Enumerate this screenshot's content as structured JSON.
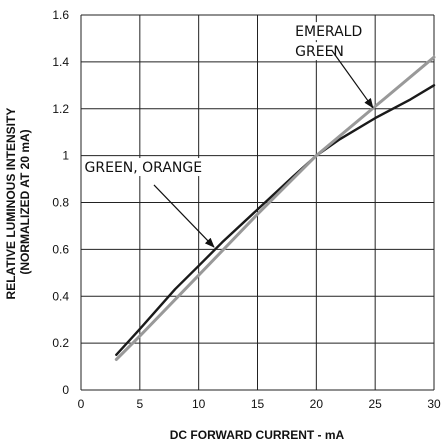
{
  "chart_data": {
    "type": "line",
    "title": "",
    "xlabel": "DC FORWARD CURRENT - mA",
    "ylabel_lines": [
      "RELATIVE LUMINOUS INTENSITY",
      "(NORMALIZED AT 20 mA)"
    ],
    "xlim": [
      0,
      30
    ],
    "ylim": [
      0,
      1.6
    ],
    "x_ticks": [
      0,
      5,
      10,
      15,
      20,
      25,
      30
    ],
    "x_tick_labels": [
      "0",
      "5",
      "10",
      "15",
      "20",
      "25",
      "30"
    ],
    "y_ticks": [
      0,
      0.2,
      0.4,
      0.6,
      0.8,
      1.0,
      1.2,
      1.4,
      1.6
    ],
    "y_tick_labels": [
      "0",
      "0.2",
      "0.4",
      "0.6",
      "0.8",
      "1",
      "1.2",
      "1.4",
      "1.6"
    ],
    "grid": true,
    "legend": "none",
    "series": [
      {
        "color": "#1a1a1a",
        "x": [
          3,
          5,
          8,
          10,
          12,
          15,
          18,
          20,
          22,
          25,
          28,
          30
        ],
        "y": [
          0.15,
          0.26,
          0.43,
          0.53,
          0.63,
          0.77,
          0.91,
          1.0,
          1.07,
          1.16,
          1.24,
          1.3
        ]
      },
      {
        "color": "#999999",
        "x": [
          3,
          5,
          10,
          15,
          20,
          25,
          30
        ],
        "y": [
          0.13,
          0.23,
          0.49,
          0.75,
          1.0,
          1.21,
          1.42
        ]
      }
    ],
    "annotations": [
      {
        "lines": [
          "EMERALD",
          "GREEN"
        ],
        "text_xy": [
          18.2,
          1.51
        ],
        "arrow_from": [
          21.3,
          1.45
        ],
        "arrow_to": [
          24.8,
          1.205
        ]
      },
      {
        "lines": [
          "GREEN, ORANGE"
        ],
        "text_xy": [
          0.3,
          0.93
        ],
        "arrow_from": [
          6.2,
          0.875
        ],
        "arrow_to": [
          11.3,
          0.61
        ]
      }
    ]
  }
}
